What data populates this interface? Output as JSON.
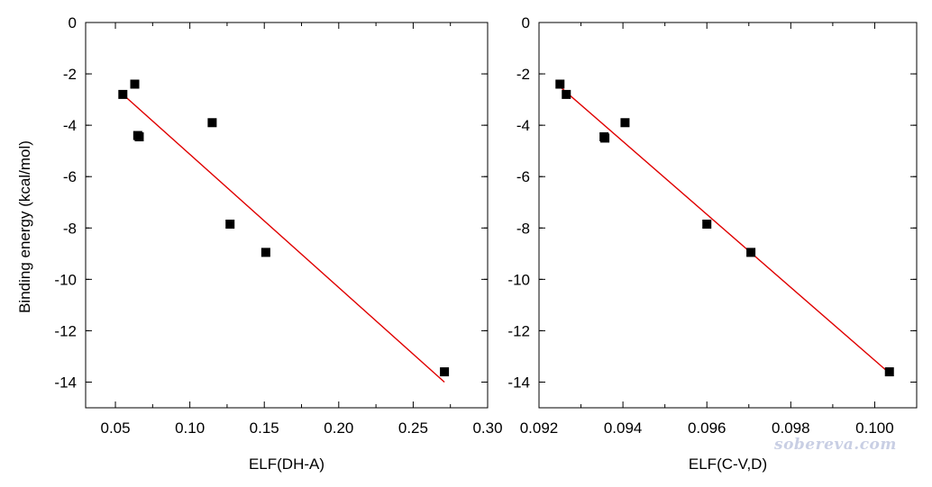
{
  "figure": {
    "ylabel": "Binding energy (kcal/mol)",
    "watermark": "sobereva.com"
  },
  "colors": {
    "markers": "#000000",
    "fit_line": "#e00000",
    "axes": "#000000"
  },
  "chart_data": [
    {
      "type": "scatter",
      "xlabel": "ELF(DH-A)",
      "ylabel": "Binding energy (kcal/mol)",
      "xlim": [
        0.03,
        0.3
      ],
      "ylim": [
        -15,
        0
      ],
      "x_ticks": [
        0.05,
        0.1,
        0.15,
        0.2,
        0.25,
        0.3
      ],
      "x_tick_labels": [
        "0.05",
        "0.10",
        "0.15",
        "0.20",
        "0.25",
        "0.30"
      ],
      "y_ticks": [
        0,
        -2,
        -4,
        -6,
        -8,
        -10,
        -12,
        -14
      ],
      "y_tick_labels": [
        "0",
        "-2",
        "-4",
        "-6",
        "-8",
        "-10",
        "-12",
        "-14"
      ],
      "points": [
        {
          "x": 0.055,
          "y": -2.8
        },
        {
          "x": 0.063,
          "y": -2.4
        },
        {
          "x": 0.065,
          "y": -4.4
        },
        {
          "x": 0.066,
          "y": -4.45
        },
        {
          "x": 0.115,
          "y": -3.9
        },
        {
          "x": 0.127,
          "y": -7.85
        },
        {
          "x": 0.151,
          "y": -8.95
        },
        {
          "x": 0.271,
          "y": -13.6
        }
      ],
      "fit_line": [
        {
          "x": 0.055,
          "y": -2.8
        },
        {
          "x": 0.271,
          "y": -14.0
        }
      ],
      "grid": false,
      "legend": "none"
    },
    {
      "type": "scatter",
      "xlabel": "ELF(C-V,D)",
      "ylabel": "",
      "xlim": [
        0.092,
        0.101
      ],
      "ylim": [
        -15,
        0
      ],
      "x_ticks": [
        0.092,
        0.094,
        0.096,
        0.098,
        0.1
      ],
      "x_tick_labels": [
        "0.092",
        "0.094",
        "0.096",
        "0.098",
        "0.100"
      ],
      "y_ticks": [
        0,
        -2,
        -4,
        -6,
        -8,
        -10,
        -12,
        -14
      ],
      "y_tick_labels": [
        "0",
        "-2",
        "-4",
        "-6",
        "-8",
        "-10",
        "-12",
        "-14"
      ],
      "points": [
        {
          "x": 0.0925,
          "y": -2.4
        },
        {
          "x": 0.09265,
          "y": -2.8
        },
        {
          "x": 0.09355,
          "y": -4.45
        },
        {
          "x": 0.09357,
          "y": -4.5
        },
        {
          "x": 0.09405,
          "y": -3.9
        },
        {
          "x": 0.096,
          "y": -7.85
        },
        {
          "x": 0.09705,
          "y": -8.95
        },
        {
          "x": 0.10035,
          "y": -13.6
        }
      ],
      "fit_line": [
        {
          "x": 0.0925,
          "y": -2.5
        },
        {
          "x": 0.10035,
          "y": -13.65
        }
      ],
      "grid": false,
      "legend": "none"
    }
  ]
}
